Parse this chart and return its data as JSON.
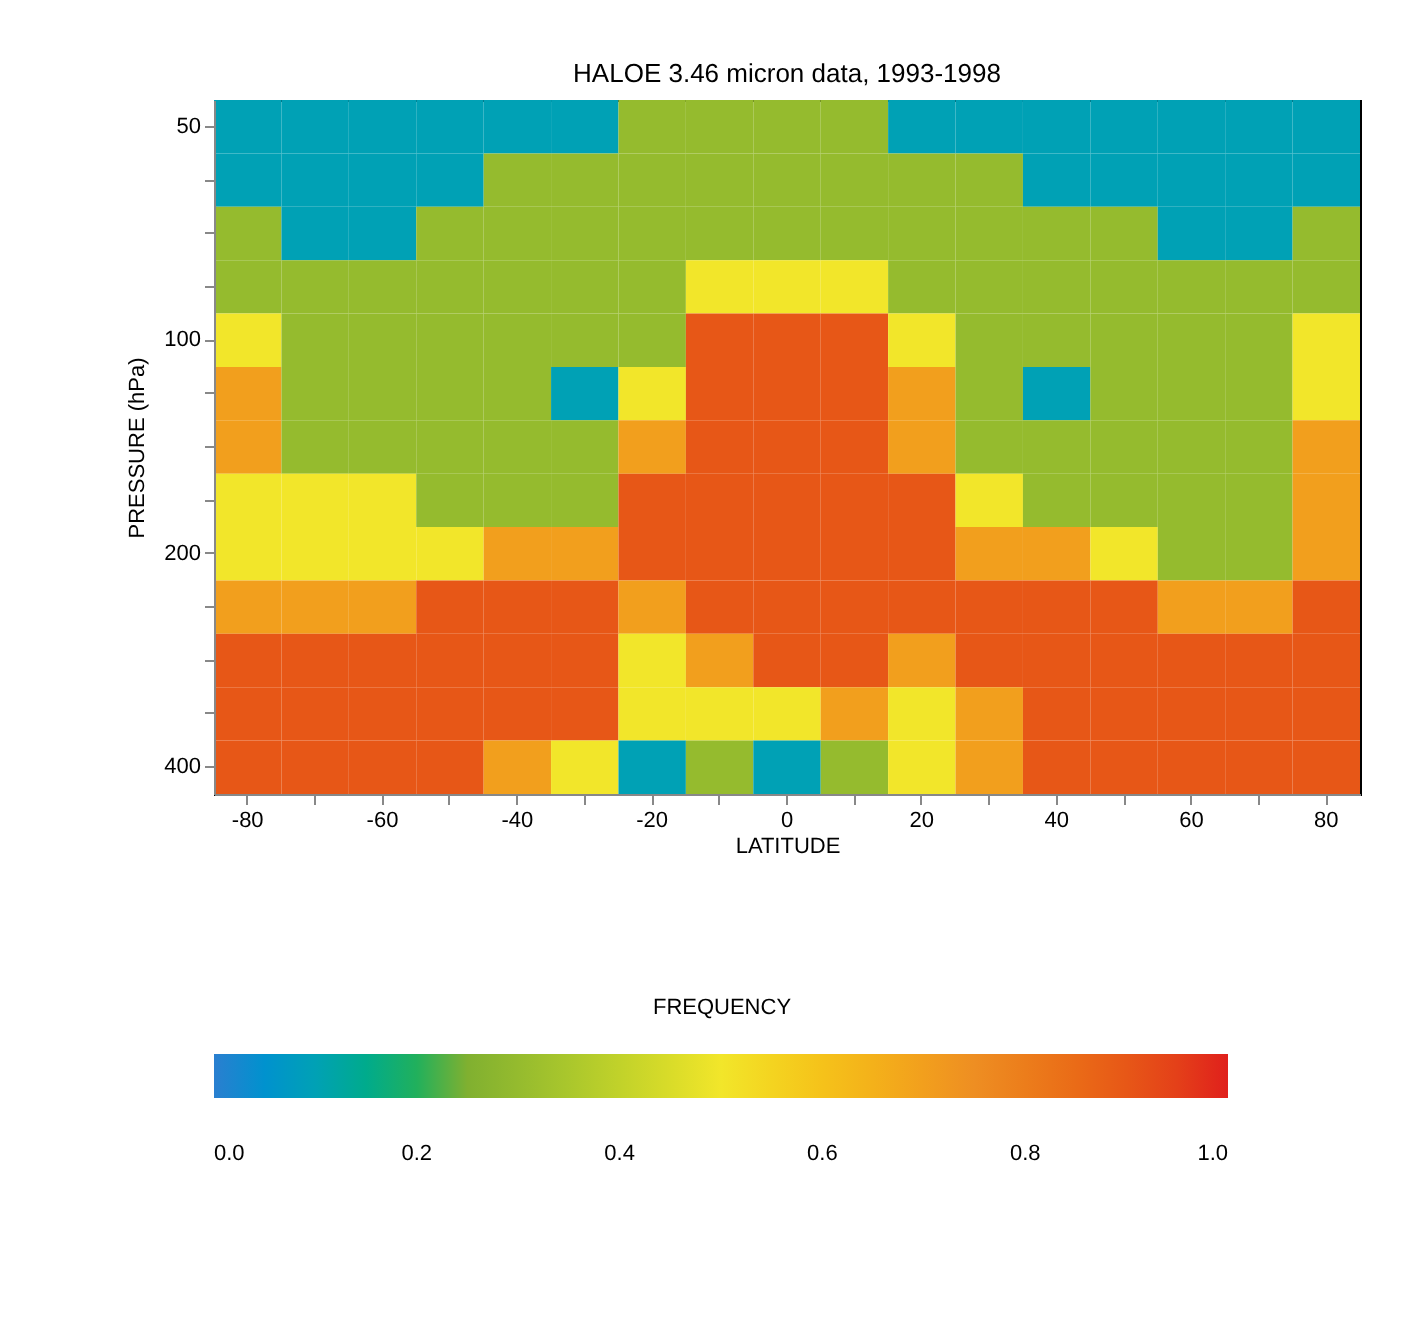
{
  "chart_data": {
    "type": "heatmap",
    "title": "HALOE 3.46 micron data, 1993-1998",
    "xlabel": "LATITUDE",
    "ylabel": "PRESSURE (hPa)",
    "clabel": "FREQUENCY",
    "categories": [
      "-80",
      null,
      "-60",
      null,
      "-40",
      null,
      "-20",
      null,
      "0",
      null,
      "20",
      null,
      "40",
      null,
      "60",
      null,
      "80"
    ],
    "y_categories": [
      "50",
      null,
      null,
      null,
      "100",
      null,
      null,
      null,
      "200",
      null,
      null,
      null,
      "400"
    ],
    "cells": [
      [
        0.1,
        0.1,
        0.1,
        0.1,
        0.1,
        0.1,
        0.3,
        0.3,
        0.3,
        0.3,
        0.1,
        0.1,
        0.1,
        0.1,
        0.1,
        0.1,
        0.1
      ],
      [
        0.1,
        0.1,
        0.1,
        0.1,
        0.3,
        0.3,
        0.3,
        0.3,
        0.3,
        0.3,
        0.3,
        0.3,
        0.1,
        0.1,
        0.1,
        0.1,
        0.1
      ],
      [
        0.3,
        0.1,
        0.1,
        0.3,
        0.3,
        0.3,
        0.3,
        0.3,
        0.3,
        0.3,
        0.3,
        0.3,
        0.3,
        0.3,
        0.1,
        0.1,
        0.3
      ],
      [
        0.3,
        0.3,
        0.3,
        0.3,
        0.3,
        0.3,
        0.3,
        0.5,
        0.5,
        0.5,
        0.3,
        0.3,
        0.3,
        0.3,
        0.3,
        0.3,
        0.3
      ],
      [
        0.5,
        0.3,
        0.3,
        0.3,
        0.3,
        0.3,
        0.3,
        0.9,
        0.9,
        0.9,
        0.5,
        0.3,
        0.3,
        0.3,
        0.3,
        0.3,
        0.5
      ],
      [
        0.7,
        0.3,
        0.3,
        0.3,
        0.3,
        0.1,
        0.5,
        0.9,
        0.9,
        0.9,
        0.7,
        0.3,
        0.1,
        0.3,
        0.3,
        0.3,
        0.5
      ],
      [
        0.7,
        0.3,
        0.3,
        0.3,
        0.3,
        0.3,
        0.7,
        0.9,
        0.9,
        0.9,
        0.7,
        0.3,
        0.3,
        0.3,
        0.3,
        0.3,
        0.7
      ],
      [
        0.5,
        0.5,
        0.5,
        0.3,
        0.3,
        0.3,
        0.9,
        0.9,
        0.9,
        0.9,
        0.9,
        0.5,
        0.3,
        0.3,
        0.3,
        0.3,
        0.7
      ],
      [
        0.5,
        0.5,
        0.5,
        0.5,
        0.7,
        0.7,
        0.9,
        0.9,
        0.9,
        0.9,
        0.9,
        0.7,
        0.7,
        0.5,
        0.3,
        0.3,
        0.7
      ],
      [
        0.7,
        0.7,
        0.7,
        0.9,
        0.9,
        0.9,
        0.7,
        0.9,
        0.9,
        0.9,
        0.9,
        0.9,
        0.9,
        0.9,
        0.7,
        0.7,
        0.9
      ],
      [
        0.9,
        0.9,
        0.9,
        0.9,
        0.9,
        0.9,
        0.5,
        0.7,
        0.9,
        0.9,
        0.7,
        0.9,
        0.9,
        0.9,
        0.9,
        0.9,
        0.9
      ],
      [
        0.9,
        0.9,
        0.9,
        0.9,
        0.9,
        0.9,
        0.5,
        0.5,
        0.5,
        0.7,
        0.5,
        0.7,
        0.9,
        0.9,
        0.9,
        0.9,
        0.9
      ],
      [
        0.9,
        0.9,
        0.9,
        0.9,
        0.7,
        0.5,
        0.1,
        0.3,
        0.1,
        0.3,
        0.5,
        0.7,
        0.9,
        0.9,
        0.9,
        0.9,
        0.9
      ]
    ],
    "colors": [
      "#2a7fd0",
      "#80b030",
      "#f2e62a",
      "#ee8e22",
      "#e0201c"
    ],
    "clim": [
      0,
      1
    ],
    "cticks": [
      {
        "value": 0,
        "label": "0.0"
      },
      {
        "value": 0.2,
        "label": "0.2"
      },
      {
        "value": 0.4,
        "label": "0.4"
      },
      {
        "value": 0.6,
        "label": "0.6"
      },
      {
        "value": 0.8,
        "label": "0.8"
      },
      {
        "value": 1,
        "label": "1.0"
      }
    ]
  }
}
